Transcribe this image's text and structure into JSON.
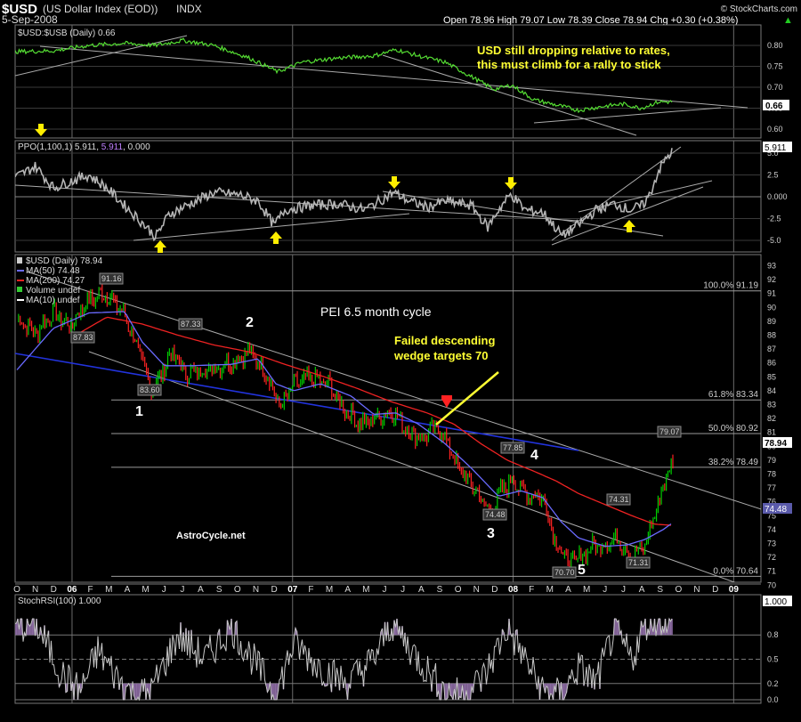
{
  "header": {
    "symbol": "$USD",
    "name": "(US Dollar Index (EOD))",
    "exchange": "INDX",
    "date": "5-Sep-2008",
    "watermark": "© StockCharts.com",
    "quote": "Open 78.96  High 79.07  Low 78.39  Close 78.94  Chg +0.30 (+0.38%)",
    "quote_arrow": "▲"
  },
  "colors": {
    "ratio": "#55dd33",
    "price_up": "#00cc00",
    "price_down": "#ff2222",
    "ma50": "#6a6aff",
    "ma200": "#ee2222",
    "blue_trend": "#2233dd",
    "arrow": "#ffee00",
    "ppo": "#b5b5b5",
    "stoch": "#c8c8c8",
    "stoch_fill": "#8a6aa0"
  },
  "panels": {
    "ratio": {
      "legend": "$USD:$USB (Daily) 0.66",
      "ticks": [
        "0.80",
        "0.75",
        "0.70",
        "0.65",
        "0.60"
      ],
      "last": "0.66",
      "annotation": [
        "USD still dropping relative to rates,",
        "this must climb for a rally to stick"
      ]
    },
    "ppo": {
      "legend_a": "PPO(1,100,1) 5.911, ",
      "legend_b": "5.911",
      "legend_c": ", 0.000",
      "ticks": [
        "5.0",
        "2.5",
        "0.000",
        "-2.5",
        "-5.0"
      ],
      "last": "5.911"
    },
    "price": {
      "legend": [
        "$USD (Daily) 78.94",
        "MA(50) 74.48",
        "MA(200) 74.27",
        "Volume undef",
        "MA(10) undef"
      ],
      "ticks": [
        "93",
        "92",
        "91",
        "90",
        "89",
        "88",
        "87",
        "86",
        "85",
        "84",
        "83",
        "82",
        "81",
        "80",
        "79",
        "78",
        "77",
        "76",
        "75",
        "74",
        "73",
        "72",
        "71",
        "70"
      ],
      "last_price": "78.94",
      "last_ma": "74.48",
      "fib": [
        "100.0% 91.19",
        "61.8% 83.34",
        "50.0% 80.92",
        "38.2% 78.49",
        "0.0% 70.64"
      ],
      "price_labels": [
        "91.16",
        "87.83",
        "87.33",
        "83.60",
        "77.85",
        "74.48",
        "74.31",
        "79.07",
        "70.70",
        "71.31"
      ],
      "waves": [
        "1",
        "2",
        "3",
        "4",
        "5"
      ],
      "title_annotation": "PEI 6.5 month cycle",
      "wedge_annotation": [
        "Failed descending",
        "wedge targets 70"
      ],
      "site": "AstroCycle.net"
    },
    "stoch": {
      "legend": "StochRSI(100) 1.000",
      "ticks": [
        "0.8",
        "0.5",
        "0.2",
        "0.0"
      ],
      "last": "1.000"
    }
  },
  "x_axis": {
    "ticks": [
      "O",
      "N",
      "D",
      "06",
      "F",
      "M",
      "A",
      "M",
      "J",
      "J",
      "A",
      "S",
      "O",
      "N",
      "D",
      "07",
      "F",
      "M",
      "A",
      "M",
      "J",
      "J",
      "A",
      "S",
      "O",
      "N",
      "D",
      "08",
      "F",
      "M",
      "A",
      "M",
      "J",
      "J",
      "A",
      "S",
      "O",
      "N",
      "D",
      "09"
    ]
  },
  "chart_data": {
    "type": "line",
    "title": "$USD (US Dollar Index (EOD)) INDX",
    "x_range": [
      "2005-10",
      "2009-01"
    ],
    "series": [
      {
        "name": "$USD (Daily)",
        "values_approx": {
          "2005-11": 89.5,
          "2006-01": 90.5,
          "2006-02": 91.16,
          "2006-05": 83.6,
          "2006-06": 86.5,
          "2006-10": 87.3,
          "2006-12": 82.5,
          "2007-02": 84.8,
          "2007-04": 82.0,
          "2007-06": 82.7,
          "2007-07": 80.5,
          "2007-08": 81.8,
          "2007-10": 77.5,
          "2007-11": 75.0,
          "2008-01": 77.85,
          "2008-03": 72.2,
          "2008-04": 70.7,
          "2008-05": 72.5,
          "2008-06": 73.8,
          "2008-07": 71.31,
          "2008-09": 78.94
        }
      },
      {
        "name": "MA(50)",
        "last": 74.48
      },
      {
        "name": "MA(200)",
        "last": 74.27
      },
      {
        "name": "$USD:$USB (Daily)",
        "last": 0.66
      },
      {
        "name": "PPO(1,100,1)",
        "last": 5.911
      },
      {
        "name": "StochRSI(100)",
        "last": 1.0
      }
    ],
    "fibonacci": [
      {
        "level": "100.0%",
        "value": 91.19
      },
      {
        "level": "61.8%",
        "value": 83.34
      },
      {
        "level": "50.0%",
        "value": 80.92
      },
      {
        "level": "38.2%",
        "value": 78.49
      },
      {
        "level": "0.0%",
        "value": 70.64
      }
    ],
    "ylim_price": [
      69.5,
      93.5
    ]
  }
}
